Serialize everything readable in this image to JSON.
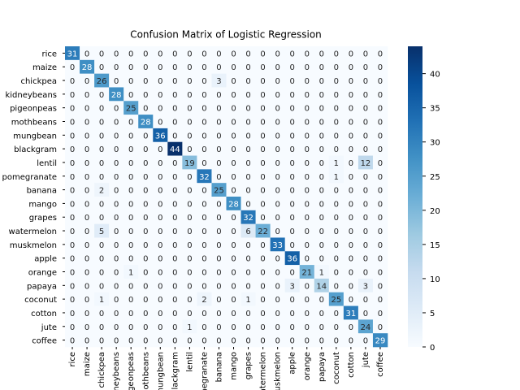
{
  "chart_data": {
    "type": "heatmap",
    "title": "Confusion Matrix of Logistic Regression",
    "x_categories": [
      "rice",
      "maize",
      "chickpea",
      "kidneybeans",
      "pigeonpeas",
      "mothbeans",
      "mungbean",
      "blackgram",
      "lentil",
      "pomegranate",
      "banana",
      "mango",
      "grapes",
      "watermelon",
      "muskmelon",
      "apple",
      "orange",
      "papaya",
      "coconut",
      "cotton",
      "jute",
      "coffee"
    ],
    "y_categories": [
      "rice",
      "maize",
      "chickpea",
      "kidneybeans",
      "pigeonpeas",
      "mothbeans",
      "mungbean",
      "blackgram",
      "lentil",
      "pomegranate",
      "banana",
      "mango",
      "grapes",
      "watermelon",
      "muskmelon",
      "apple",
      "orange",
      "papaya",
      "coconut",
      "cotton",
      "jute",
      "coffee"
    ],
    "matrix": [
      [
        31,
        0,
        0,
        0,
        0,
        0,
        0,
        0,
        0,
        0,
        0,
        0,
        0,
        0,
        0,
        0,
        0,
        0,
        0,
        0,
        0,
        0
      ],
      [
        0,
        28,
        0,
        0,
        0,
        0,
        0,
        0,
        0,
        0,
        0,
        0,
        0,
        0,
        0,
        0,
        0,
        0,
        0,
        0,
        0,
        0
      ],
      [
        0,
        0,
        26,
        0,
        0,
        0,
        0,
        0,
        0,
        0,
        3,
        0,
        0,
        0,
        0,
        0,
        0,
        0,
        0,
        0,
        0,
        0
      ],
      [
        0,
        0,
        0,
        28,
        0,
        0,
        0,
        0,
        0,
        0,
        0,
        0,
        0,
        0,
        0,
        0,
        0,
        0,
        0,
        0,
        0,
        0
      ],
      [
        0,
        0,
        0,
        0,
        25,
        0,
        0,
        0,
        0,
        0,
        0,
        0,
        0,
        0,
        0,
        0,
        0,
        0,
        0,
        0,
        0,
        0
      ],
      [
        0,
        0,
        0,
        0,
        0,
        28,
        0,
        0,
        0,
        0,
        0,
        0,
        0,
        0,
        0,
        0,
        0,
        0,
        0,
        0,
        0,
        0
      ],
      [
        0,
        0,
        0,
        0,
        0,
        0,
        36,
        0,
        0,
        0,
        0,
        0,
        0,
        0,
        0,
        0,
        0,
        0,
        0,
        0,
        0,
        0
      ],
      [
        0,
        0,
        0,
        0,
        0,
        0,
        0,
        44,
        0,
        0,
        0,
        0,
        0,
        0,
        0,
        0,
        0,
        0,
        0,
        0,
        0,
        0
      ],
      [
        0,
        0,
        0,
        0,
        0,
        0,
        0,
        0,
        19,
        0,
        0,
        0,
        0,
        0,
        0,
        0,
        0,
        0,
        1,
        0,
        12,
        0
      ],
      [
        0,
        0,
        0,
        0,
        0,
        0,
        0,
        0,
        0,
        32,
        0,
        0,
        0,
        0,
        0,
        0,
        0,
        0,
        1,
        0,
        0,
        0
      ],
      [
        0,
        0,
        2,
        0,
        0,
        0,
        0,
        0,
        0,
        0,
        25,
        0,
        0,
        0,
        0,
        0,
        0,
        0,
        0,
        0,
        0,
        0
      ],
      [
        0,
        0,
        0,
        0,
        0,
        0,
        0,
        0,
        0,
        0,
        0,
        28,
        0,
        0,
        0,
        0,
        0,
        0,
        0,
        0,
        0,
        0
      ],
      [
        0,
        0,
        0,
        0,
        0,
        0,
        0,
        0,
        0,
        0,
        0,
        0,
        32,
        0,
        0,
        0,
        0,
        0,
        0,
        0,
        0,
        0
      ],
      [
        0,
        0,
        5,
        0,
        0,
        0,
        0,
        0,
        0,
        0,
        0,
        0,
        6,
        22,
        0,
        0,
        0,
        0,
        0,
        0,
        0,
        0
      ],
      [
        0,
        0,
        0,
        0,
        0,
        0,
        0,
        0,
        0,
        0,
        0,
        0,
        0,
        0,
        33,
        0,
        0,
        0,
        0,
        0,
        0,
        0
      ],
      [
        0,
        0,
        0,
        0,
        0,
        0,
        0,
        0,
        0,
        0,
        0,
        0,
        0,
        0,
        0,
        36,
        0,
        0,
        0,
        0,
        0,
        0
      ],
      [
        0,
        0,
        0,
        0,
        1,
        0,
        0,
        0,
        0,
        0,
        0,
        0,
        0,
        0,
        0,
        0,
        21,
        1,
        0,
        0,
        0,
        0
      ],
      [
        0,
        0,
        0,
        0,
        0,
        0,
        0,
        0,
        0,
        0,
        0,
        0,
        0,
        0,
        0,
        3,
        0,
        14,
        0,
        0,
        3,
        0
      ],
      [
        0,
        0,
        1,
        0,
        0,
        0,
        0,
        0,
        0,
        2,
        0,
        0,
        1,
        0,
        0,
        0,
        0,
        0,
        25,
        0,
        0,
        0
      ],
      [
        0,
        0,
        0,
        0,
        0,
        0,
        0,
        0,
        0,
        0,
        0,
        0,
        0,
        0,
        0,
        0,
        0,
        0,
        0,
        31,
        0,
        0
      ],
      [
        0,
        0,
        0,
        0,
        0,
        0,
        0,
        0,
        1,
        0,
        0,
        0,
        0,
        0,
        0,
        0,
        0,
        0,
        0,
        0,
        24,
        0
      ],
      [
        0,
        0,
        0,
        0,
        0,
        0,
        0,
        0,
        0,
        0,
        0,
        0,
        0,
        0,
        0,
        0,
        0,
        0,
        0,
        0,
        0,
        29
      ]
    ],
    "colormap": "Blues",
    "clim": [
      0,
      44
    ],
    "colorbar_ticks": [
      0,
      5,
      10,
      15,
      20,
      25,
      30,
      35,
      40
    ]
  }
}
